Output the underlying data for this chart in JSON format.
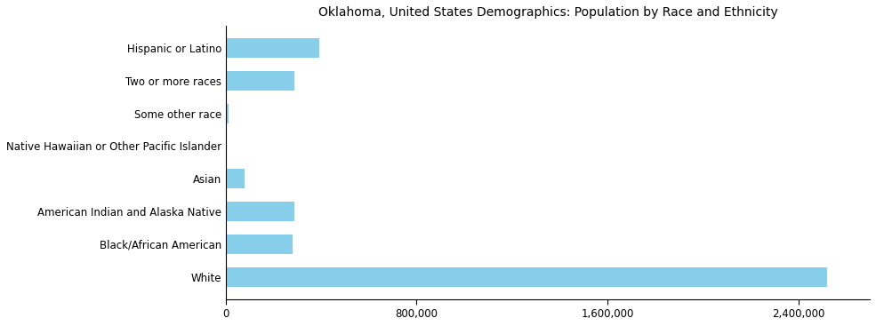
{
  "categories": [
    "White",
    "Black/African American",
    "American Indian and Alaska Native",
    "Asian",
    "Native Hawaiian or Other Pacific Islander",
    "Some other race",
    "Two or more races",
    "Hispanic or Latino"
  ],
  "values": [
    2520000,
    281000,
    288000,
    80000,
    5000,
    10000,
    289000,
    392000
  ],
  "bar_color": "#87CEEB",
  "title": "Oklahoma, United States Demographics: Population by Race and Ethnicity",
  "xlim": [
    0,
    2700000
  ],
  "xticks": [
    0,
    800000,
    1600000,
    2400000
  ],
  "xtick_labels": [
    "0",
    "800,000",
    "1,600,000",
    "2,400,000"
  ],
  "title_fontsize": 10,
  "label_fontsize": 8.5,
  "tick_fontsize": 8.5
}
